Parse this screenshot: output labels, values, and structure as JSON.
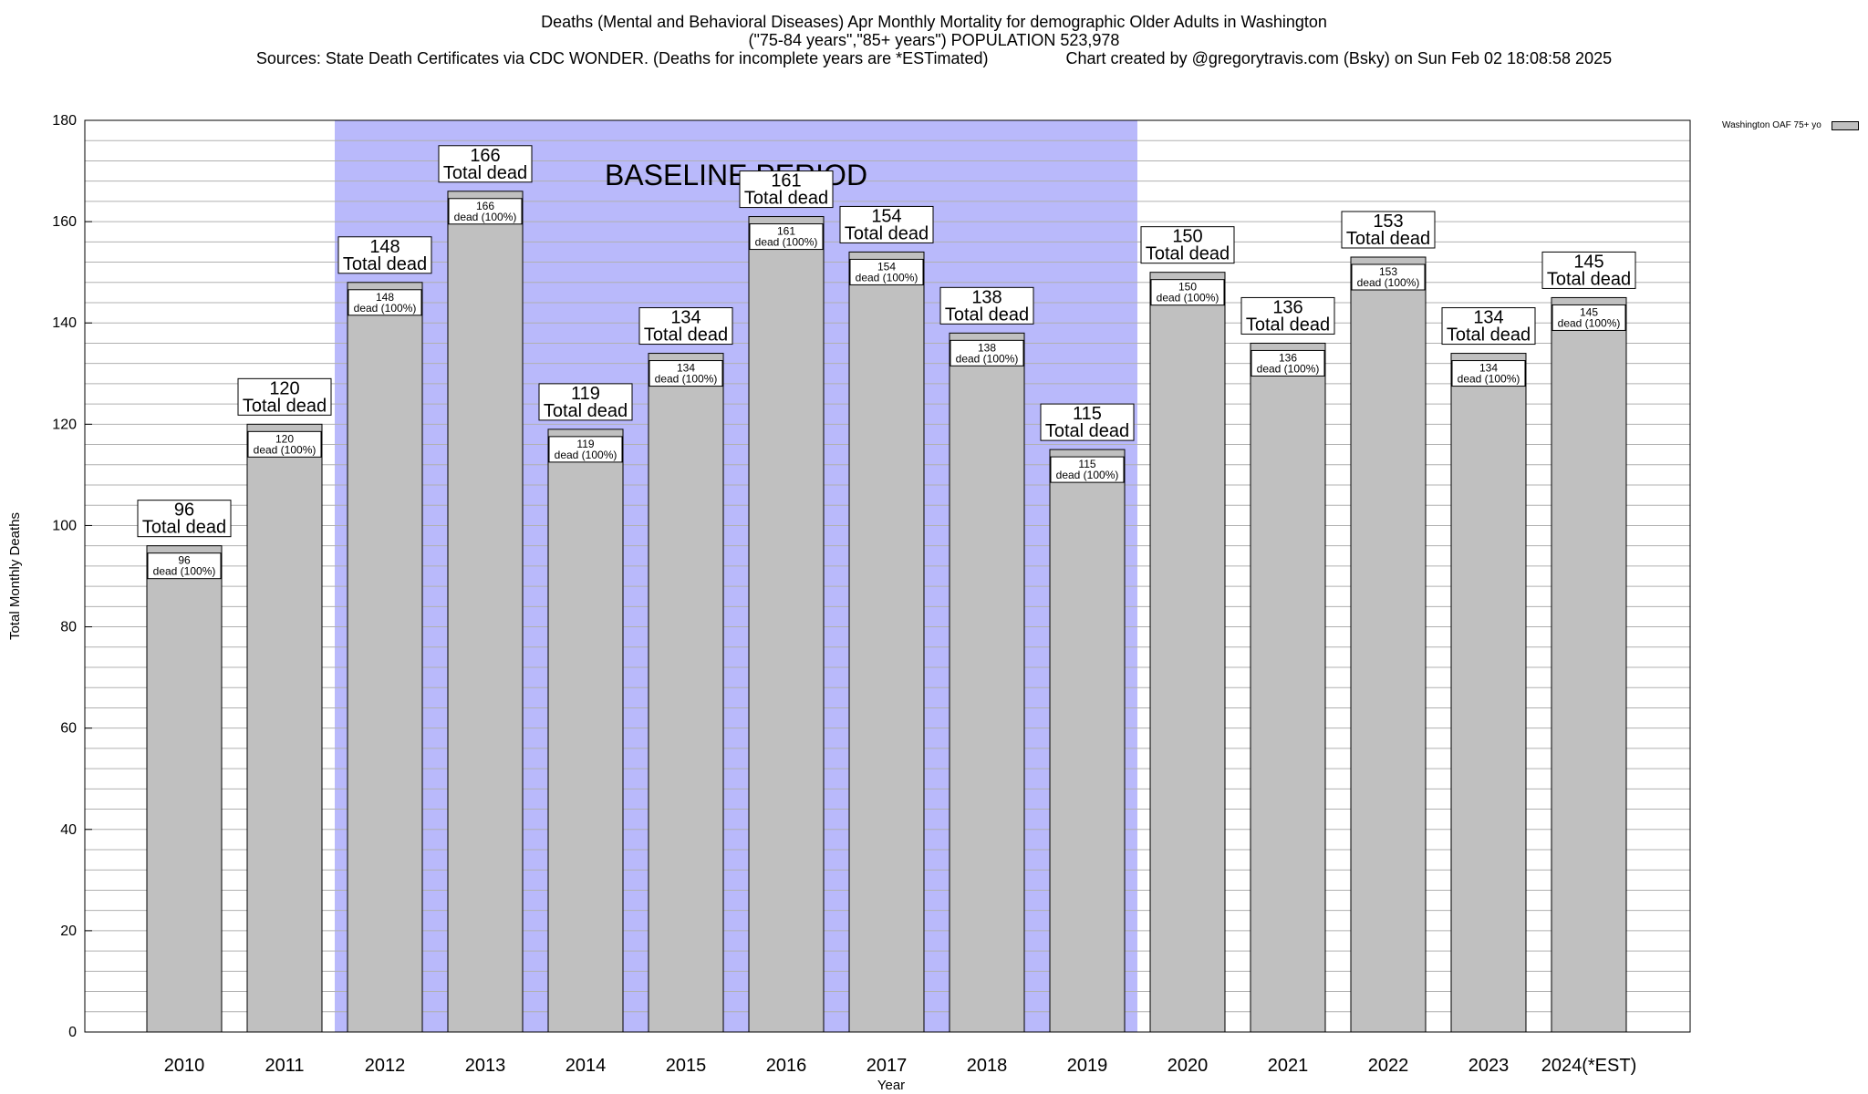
{
  "title": {
    "line1": "Deaths (Mental and Behavioral Diseases) Apr Monthly Mortality for demographic Older Adults in Washington",
    "line2": "(\"75-84 years\",\"85+ years\") POPULATION 523,978",
    "line3": "Sources: State Death Certificates via CDC WONDER. (Deaths for incomplete years are *ESTimated)                 Chart created by @gregorytravis.com (Bsky) on Sun Feb 02 18:08:58 2025"
  },
  "legend": {
    "label": "Washington OAF 75+ yo"
  },
  "colors": {
    "bar": "#c0c0c0",
    "baseline_band": "#b9b9fb",
    "grid": "#b0b0b0"
  },
  "chart_data": {
    "type": "bar",
    "xlabel": "Year",
    "ylabel": "Total Monthly Deaths",
    "ylim": [
      0,
      180
    ],
    "yticks": [
      0,
      20,
      40,
      60,
      80,
      100,
      120,
      140,
      160,
      180
    ],
    "grid": true,
    "legend_position": "top-right",
    "categories": [
      "2010",
      "2011",
      "2012",
      "2013",
      "2014",
      "2015",
      "2016",
      "2017",
      "2018",
      "2019",
      "2020",
      "2021",
      "2022",
      "2023",
      "2024(*EST)"
    ],
    "series": [
      {
        "name": "Washington OAF 75+ yo",
        "values": [
          96,
          120,
          148,
          166,
          119,
          134,
          161,
          154,
          138,
          115,
          150,
          136,
          153,
          134,
          145
        ]
      }
    ],
    "top_label_suffix": "Total dead",
    "inner_label_suffix": "dead (100%)",
    "baseline": {
      "label": "BASELINE PERIOD",
      "from": "2012",
      "to": "2019"
    }
  }
}
